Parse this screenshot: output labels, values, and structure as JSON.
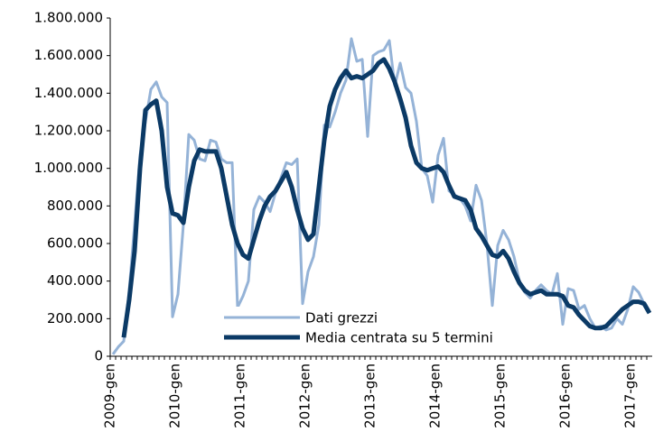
{
  "chart_data": {
    "type": "line",
    "categories": [
      "2009-gen",
      null,
      null,
      null,
      null,
      null,
      null,
      null,
      null,
      null,
      null,
      null,
      "2010-gen",
      null,
      null,
      null,
      null,
      null,
      null,
      null,
      null,
      null,
      null,
      null,
      "2011-gen",
      null,
      null,
      null,
      null,
      null,
      null,
      null,
      null,
      null,
      null,
      null,
      "2012-gen",
      null,
      null,
      null,
      null,
      null,
      null,
      null,
      null,
      null,
      null,
      null,
      "2013-gen",
      null,
      null,
      null,
      null,
      null,
      null,
      null,
      null,
      null,
      null,
      null,
      "2014-gen",
      null,
      null,
      null,
      null,
      null,
      null,
      null,
      null,
      null,
      null,
      null,
      "2015-gen",
      null,
      null,
      null,
      null,
      null,
      null,
      null,
      null,
      null,
      null,
      null,
      "2016-gen",
      null,
      null,
      null,
      null,
      null,
      null,
      null,
      null,
      null,
      null,
      null,
      "2017-gen",
      null,
      null,
      null
    ],
    "series": [
      {
        "name": "Dati grezzi",
        "color": "#95b3d7",
        "width": 3,
        "values": [
          10000,
          50000,
          80000,
          350000,
          700000,
          1070000,
          1250000,
          1420000,
          1460000,
          1380000,
          1350000,
          210000,
          330000,
          700000,
          1180000,
          1150000,
          1050000,
          1040000,
          1150000,
          1140000,
          1050000,
          1030000,
          1030000,
          260000,
          320000,
          400000,
          780000,
          850000,
          820000,
          770000,
          870000,
          950000,
          1030000,
          1020000,
          1050000,
          280000,
          450000,
          530000,
          700000,
          1230000,
          1220000,
          1300000,
          1400000,
          1470000,
          1690000,
          1570000,
          1580000,
          1170000,
          1600000,
          1620000,
          1630000,
          1680000,
          1440000,
          1560000,
          1430000,
          1400000,
          1250000,
          1000000,
          960000,
          820000,
          1070000,
          1160000,
          880000,
          860000,
          840000,
          800000,
          720000,
          910000,
          830000,
          600000,
          270000,
          590000,
          670000,
          620000,
          530000,
          400000,
          340000,
          310000,
          350000,
          380000,
          350000,
          330000,
          440000,
          170000,
          360000,
          350000,
          250000,
          270000,
          200000,
          150000,
          160000,
          140000,
          150000,
          200000,
          170000,
          250000,
          370000,
          340000,
          280000,
          230000
        ]
      },
      {
        "name": "Media centrata su 5 termini",
        "color": "#0b3a66",
        "width": 5,
        "values": [
          null,
          null,
          100000,
          300000,
          560000,
          1000000,
          1310000,
          1340000,
          1360000,
          1200000,
          900000,
          760000,
          750000,
          710000,
          900000,
          1040000,
          1100000,
          1090000,
          1090000,
          1090000,
          1000000,
          850000,
          700000,
          600000,
          540000,
          520000,
          620000,
          720000,
          800000,
          850000,
          880000,
          930000,
          980000,
          900000,
          780000,
          680000,
          620000,
          650000,
          900000,
          1150000,
          1330000,
          1420000,
          1480000,
          1520000,
          1480000,
          1490000,
          1480000,
          1500000,
          1520000,
          1560000,
          1580000,
          1530000,
          1460000,
          1370000,
          1270000,
          1120000,
          1030000,
          1000000,
          990000,
          1000000,
          1010000,
          980000,
          910000,
          850000,
          840000,
          830000,
          780000,
          680000,
          640000,
          590000,
          540000,
          530000,
          560000,
          520000,
          450000,
          390000,
          350000,
          330000,
          340000,
          350000,
          330000,
          330000,
          330000,
          320000,
          270000,
          260000,
          220000,
          190000,
          160000,
          150000,
          150000,
          160000,
          190000,
          220000,
          250000,
          270000,
          290000,
          290000,
          280000,
          230000
        ]
      }
    ],
    "ylim": [
      0,
      1800000
    ],
    "yticks": [
      0,
      {
        "value": 200000,
        "label": "200.000"
      },
      {
        "value": 400000,
        "label": "400.000"
      },
      {
        "value": 600000,
        "label": "600.000"
      },
      {
        "value": 800000,
        "label": "800.000"
      },
      {
        "value": 1000000,
        "label": "1.000.000"
      },
      {
        "value": 1200000,
        "label": "1.200.000"
      },
      {
        "value": 1400000,
        "label": "1.400.000"
      },
      {
        "value": 1600000,
        "label": "1.600.000"
      },
      {
        "value": 1800000,
        "label": "1.800.000"
      }
    ],
    "grid": false
  }
}
